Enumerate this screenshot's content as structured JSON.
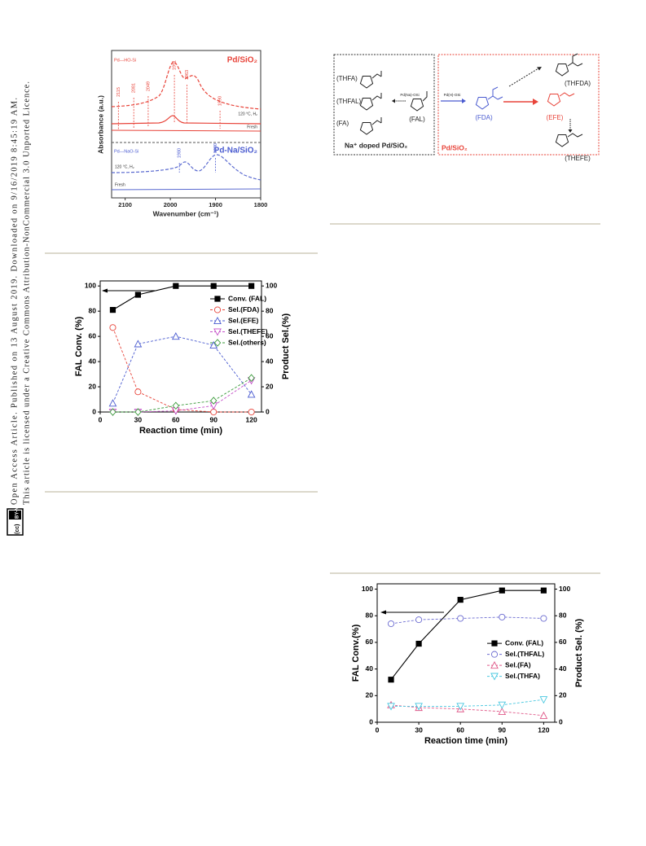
{
  "sidebar": {
    "line1": "Open Access Article. Published on 13 August 2019. Downloaded on 9/16/2019 8:45:19 AM.",
    "line2": "This article is licensed under a Creative Commons Attribution-NonCommercial 3.0 Unported Licence.",
    "badge": "BY-NC"
  },
  "ir_figure": {
    "xlabel": "Wavenumber (cm⁻¹)",
    "ylabel": "Absorbance (a.u.)",
    "xlim": [
      2130,
      1800
    ],
    "xticks": [
      2100,
      2000,
      1900,
      1800
    ],
    "top_tag": "Pd—HO-Si",
    "top_title": "Pd/SiO₂",
    "top_cond": "120 °C, H₂",
    "top_fresh": "Fresh",
    "bottom_tag": "Pd—NaO-Si",
    "bottom_title": "Pd-Na/SiO₂",
    "bottom_cond": "120 °C, H₂",
    "bottom_fresh": "Fresh",
    "peaks_top": [
      2115,
      2081,
      2049,
      1991,
      1963,
      1890
    ],
    "peaks_bottom": [
      1980,
      1900
    ]
  },
  "scheme": {
    "thfa": "(THFA)",
    "thfal": "(THFAL)",
    "fa": "(FA)",
    "left_caption": "Na⁺ doped Pd/SiO₂",
    "fal": "(FAL)",
    "left_arrow": "Pd(Na)-OSi",
    "right_arrow": "Pd(H)-OSi",
    "fda": "(FDA)",
    "efe": "(EFE)",
    "thfda": "(THFDA)",
    "thefe": "(THEFE)",
    "right_caption": "Pd/SiO₂"
  },
  "chart_data": [
    {
      "type": "line",
      "xlabel": "Reaction time (min)",
      "ylabel": "FAL Conv. (%)",
      "y2label": "Product Sel.(%)",
      "x": [
        10,
        30,
        60,
        90,
        120
      ],
      "xlim": [
        0,
        128
      ],
      "xticks": [
        0,
        30,
        60,
        90,
        120
      ],
      "ylim": [
        0,
        104
      ],
      "yticks": [
        0,
        20,
        40,
        60,
        80,
        100
      ],
      "y2lim": [
        0,
        104
      ],
      "y2ticks": [
        0,
        20,
        40,
        60,
        80,
        100
      ],
      "legend": "upper right",
      "series": [
        {
          "name": "Conv. (FAL)",
          "color": "#000000",
          "marker": "square",
          "line": "solid",
          "values": [
            81,
            93,
            100,
            100,
            100
          ]
        },
        {
          "name": "Sel.(FDA)",
          "color": "#e8443a",
          "marker": "circle",
          "line": "dashed",
          "axis": "y2",
          "values": [
            67,
            16,
            2,
            0,
            0
          ]
        },
        {
          "name": "Sel.(EFE)",
          "color": "#4a5bd0",
          "marker": "triangle",
          "line": "dashed",
          "axis": "y2",
          "values": [
            7,
            54,
            60,
            53,
            14
          ]
        },
        {
          "name": "Sel.(THEFE)",
          "color": "#c44fc8",
          "marker": "triangle-down",
          "line": "dashed",
          "axis": "y2",
          "values": [
            0,
            0,
            1,
            5,
            25
          ]
        },
        {
          "name": "Sel.(others)",
          "color": "#3a9a3a",
          "marker": "diamond",
          "line": "dashed",
          "axis": "y2",
          "values": [
            0,
            0,
            5,
            9,
            27
          ]
        }
      ]
    },
    {
      "type": "line",
      "xlabel": "Reaction time (min)",
      "ylabel": "FAL Conv.(%)",
      "y2label": "Product Sel. (%)",
      "x": [
        10,
        30,
        60,
        90,
        120
      ],
      "xlim": [
        0,
        128
      ],
      "xticks": [
        0,
        30,
        60,
        90,
        120
      ],
      "ylim": [
        0,
        104
      ],
      "yticks": [
        0,
        20,
        40,
        60,
        80,
        100
      ],
      "y2lim": [
        0,
        104
      ],
      "y2ticks": [
        0,
        20,
        40,
        60,
        80,
        100
      ],
      "legend": "center right",
      "series": [
        {
          "name": "Conv. (FAL)",
          "color": "#000000",
          "marker": "square",
          "line": "solid",
          "values": [
            32,
            59,
            92,
            99,
            99
          ]
        },
        {
          "name": "Sel.(THFAL)",
          "color": "#6a6ad0",
          "marker": "circle",
          "line": "dashed",
          "axis": "y2",
          "values": [
            74,
            77,
            78,
            79,
            78
          ]
        },
        {
          "name": "Sel.(FA)",
          "color": "#e05a8a",
          "marker": "triangle",
          "line": "dashed",
          "axis": "y2",
          "values": [
            13,
            11,
            10,
            8,
            5
          ]
        },
        {
          "name": "Sel.(THFA)",
          "color": "#4ac8e0",
          "marker": "triangle-down",
          "line": "dashed",
          "axis": "y2",
          "values": [
            12,
            12,
            12,
            13,
            17
          ]
        }
      ]
    }
  ]
}
